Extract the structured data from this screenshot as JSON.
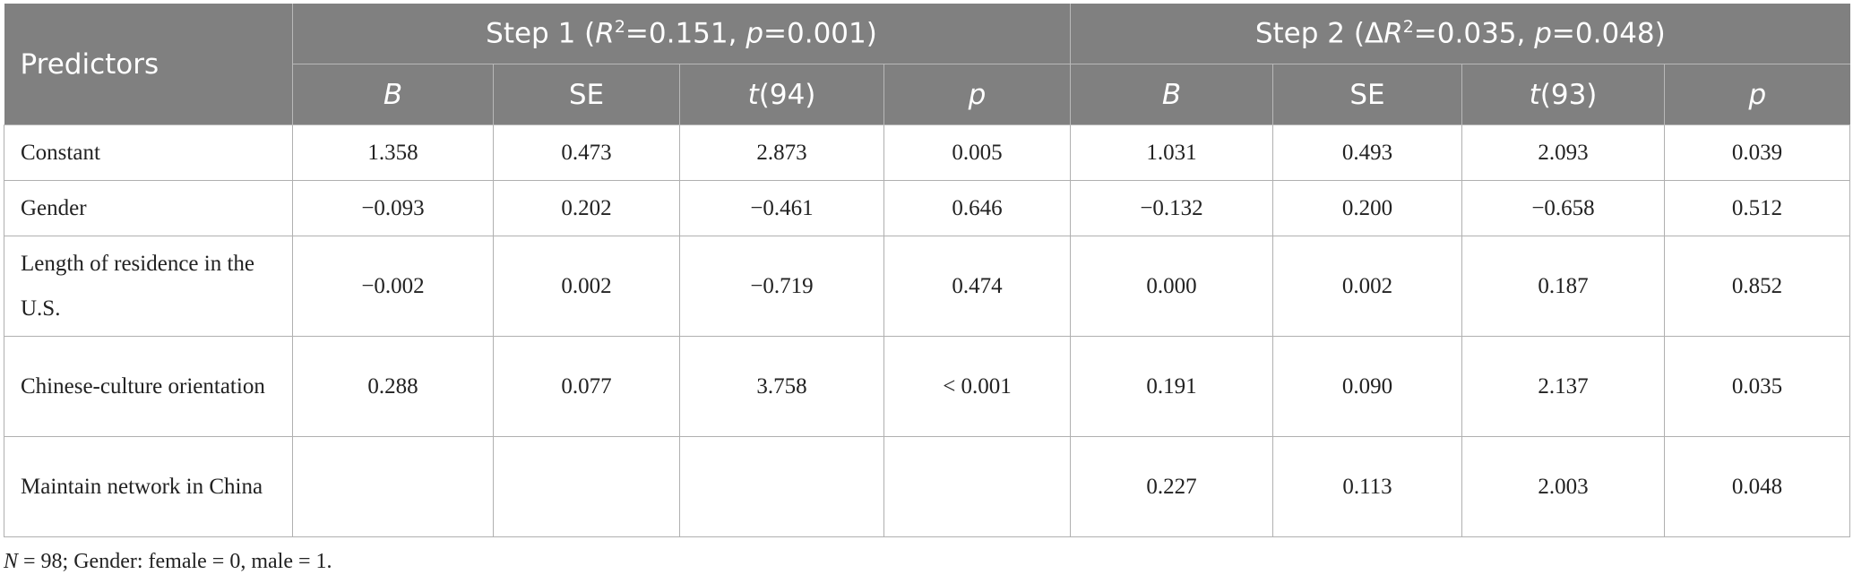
{
  "header": {
    "predictors": "Predictors",
    "step1": [
      "Step 1 (",
      "R",
      "2",
      "=0.151, ",
      "p",
      "=0.001)"
    ],
    "step2": [
      "Step 2 (Δ",
      "R",
      "2",
      "=0.035, ",
      "p",
      "=0.048)"
    ],
    "columns": [
      [
        "B"
      ],
      [
        "SE"
      ],
      [
        "t",
        "(94)"
      ],
      [
        "p"
      ],
      [
        "B"
      ],
      [
        "SE"
      ],
      [
        "t",
        "(93)"
      ],
      [
        "p"
      ]
    ]
  },
  "table": {
    "rows": [
      [
        "Constant",
        "1.358",
        "0.473",
        "2.873",
        "0.005",
        "1.031",
        "0.493",
        "2.093",
        "0.039"
      ],
      [
        "Gender",
        "−0.093",
        "0.202",
        "−0.461",
        "0.646",
        "−0.132",
        "0.200",
        "−0.658",
        "0.512"
      ],
      [
        "Length of residence in the U.S.",
        "−0.002",
        "0.002",
        "−0.719",
        "0.474",
        "0.000",
        "0.002",
        "0.187",
        "0.852"
      ],
      [
        "Chinese-culture orientation",
        "0.288",
        "0.077",
        "3.758",
        "< 0.001",
        "0.191",
        "0.090",
        "2.137",
        "0.035"
      ],
      [
        "Maintain network in China",
        null,
        null,
        null,
        null,
        "0.227",
        "0.113",
        "2.003",
        "0.048"
      ]
    ]
  },
  "note": [
    "N",
    " = 98; Gender: female = 0, male = 1."
  ]
}
